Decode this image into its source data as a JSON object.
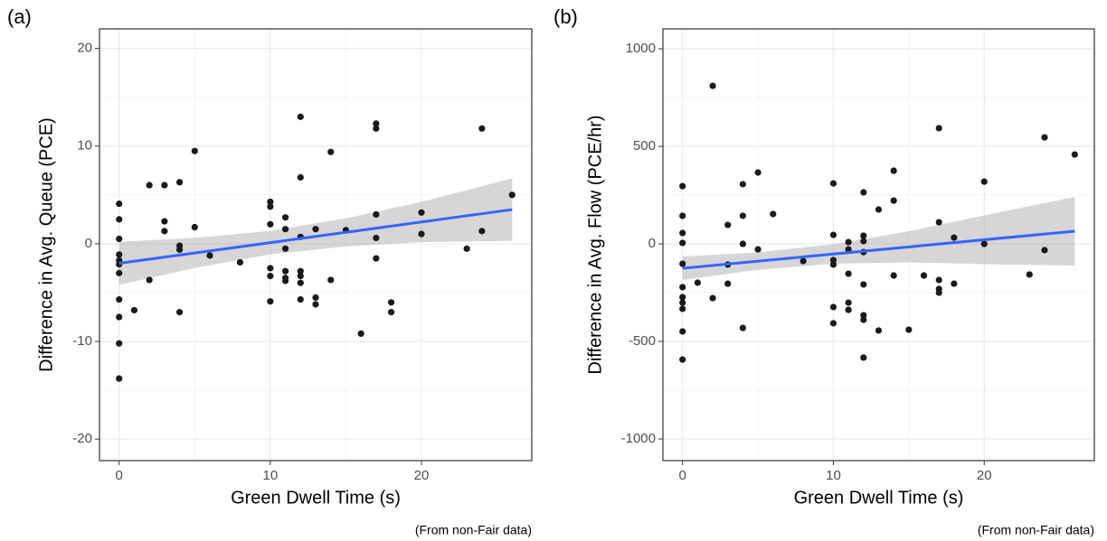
{
  "chart_data": [
    {
      "type": "scatter",
      "panel_label": "(a)",
      "x_label": "Green Dwell Time (s)",
      "y_label": "Difference in Avg. Queue (PCE)",
      "caption": "(From non-Fair data)",
      "xlim": [
        -1.3,
        27.3
      ],
      "ylim": [
        -22.2,
        22.0
      ],
      "xticks": [
        0,
        10,
        20
      ],
      "yticks": [
        -20,
        -10,
        0,
        10,
        20
      ],
      "grid": true,
      "points": {
        "color": "#1a1a1a",
        "x": [
          0,
          0,
          0,
          0,
          0,
          0,
          0,
          0,
          0,
          0,
          0,
          1,
          2,
          2,
          3,
          3,
          3,
          4,
          4,
          4,
          4,
          5,
          5,
          6,
          8,
          10,
          10,
          10,
          10,
          10,
          10,
          11,
          11,
          11,
          11,
          11,
          11,
          12,
          12,
          12,
          12,
          12,
          12,
          12,
          13,
          13,
          13,
          14,
          14,
          15,
          16,
          17,
          17,
          17,
          17,
          17,
          18,
          18,
          20,
          20,
          23,
          24,
          24,
          26
        ],
        "y": [
          4.1,
          2.5,
          0.5,
          -1.1,
          -1.7,
          -2.1,
          -3.0,
          -5.7,
          -7.5,
          -10.2,
          -13.8,
          -6.8,
          6.0,
          -3.7,
          6.0,
          2.3,
          1.3,
          6.3,
          -0.2,
          -0.6,
          -7.0,
          9.5,
          1.7,
          -1.2,
          -1.9,
          4.3,
          3.8,
          2.0,
          -2.5,
          -3.3,
          -5.9,
          2.7,
          1.5,
          -0.5,
          -2.8,
          -3.5,
          -3.8,
          13.0,
          6.8,
          0.7,
          -2.8,
          -3.3,
          -4.0,
          -5.7,
          1.5,
          -5.5,
          -6.2,
          9.4,
          -3.7,
          1.4,
          -9.2,
          12.3,
          11.8,
          3.0,
          0.6,
          -1.5,
          -6.0,
          -7.0,
          3.2,
          1.0,
          -0.5,
          11.8,
          1.3,
          5.0
        ]
      },
      "fit": {
        "color": "#3366ff",
        "x": [
          0,
          26
        ],
        "y": [
          -2.0,
          3.5
        ]
      },
      "band": {
        "color": "#999999",
        "x": [
          0,
          5,
          10,
          15,
          20,
          26
        ],
        "lower": [
          -4.2,
          -2.48,
          -1.08,
          -0.27,
          0.17,
          0.3
        ],
        "upper": [
          0.2,
          0.6,
          1.32,
          2.61,
          4.29,
          6.7
        ]
      }
    },
    {
      "type": "scatter",
      "panel_label": "(b)",
      "x_label": "Green Dwell Time (s)",
      "y_label": "Difference in Avg. Flow (PCE/hr)",
      "caption": "(From non-Fair data)",
      "xlim": [
        -1.3,
        27.3
      ],
      "ylim": [
        -1111,
        1102
      ],
      "xticks": [
        0,
        10,
        20
      ],
      "yticks": [
        -1000,
        -500,
        0,
        500,
        1000
      ],
      "grid": true,
      "points": {
        "color": "#1a1a1a",
        "x": [
          0,
          0,
          0,
          0,
          0,
          0,
          0,
          0,
          0,
          0,
          0,
          1,
          2,
          2,
          3,
          3,
          3,
          4,
          4,
          4,
          4,
          5,
          5,
          6,
          8,
          10,
          10,
          10,
          10,
          10,
          10,
          11,
          11,
          11,
          11,
          11,
          12,
          12,
          12,
          12,
          12,
          12,
          12,
          12,
          13,
          13,
          14,
          14,
          14,
          15,
          16,
          17,
          17,
          17,
          17,
          17,
          18,
          18,
          20,
          20,
          23,
          24,
          24,
          26
        ],
        "y": [
          296,
          144,
          56,
          5,
          -102,
          -222,
          -273,
          -301,
          -333,
          -449,
          -593,
          -199,
          810,
          -278,
          97,
          -106,
          -204,
          306,
          144,
          0,
          -431,
          366,
          -28,
          153,
          -88,
          310,
          46,
          -83,
          -106,
          -324,
          -407,
          9,
          -28,
          -153,
          -301,
          -338,
          264,
          42,
          14,
          -42,
          -208,
          -366,
          -389,
          -583,
          176,
          -444,
          375,
          222,
          -162,
          -440,
          -162,
          593,
          111,
          -185,
          -231,
          -250,
          32,
          -204,
          319,
          0,
          -157,
          546,
          -32,
          458
        ]
      },
      "fit": {
        "color": "#3366ff",
        "x": [
          0,
          26
        ],
        "y": [
          -125,
          65
        ]
      },
      "band": {
        "color": "#999999",
        "x": [
          0,
          5,
          10,
          15,
          20,
          26
        ],
        "lower": [
          -185,
          -133,
          -102,
          -95,
          -104,
          -111
        ],
        "upper": [
          -65,
          -43,
          -2,
          65,
          146,
          241
        ]
      }
    }
  ]
}
